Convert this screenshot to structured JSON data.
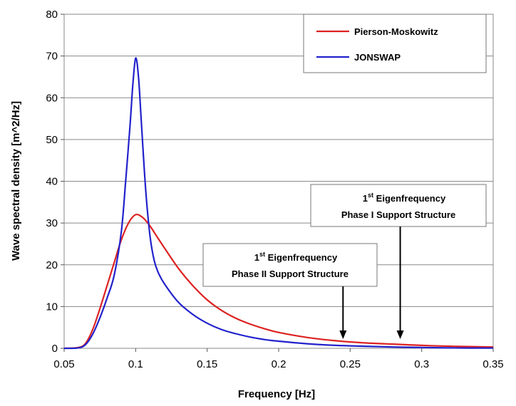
{
  "chart_data": {
    "type": "line",
    "xlabel": "Frequency [Hz]",
    "ylabel": "Wave spectral density [m^2/Hz]",
    "xlim": [
      0.05,
      0.35
    ],
    "ylim": [
      0,
      80
    ],
    "x_ticks": [
      "0.05",
      "0.1",
      "0.15",
      "0.2",
      "0.25",
      "0.3",
      "0.35"
    ],
    "y_ticks": [
      "0",
      "10",
      "20",
      "30",
      "40",
      "50",
      "60",
      "70",
      "80"
    ],
    "grid": "horizontal",
    "legend_position": "top-right",
    "series": [
      {
        "name": "Pierson-Moskowitz",
        "color": "#dd2222",
        "x": [
          0.05,
          0.06,
          0.065,
          0.07,
          0.075,
          0.08,
          0.085,
          0.09,
          0.095,
          0.1,
          0.105,
          0.11,
          0.115,
          0.12,
          0.13,
          0.14,
          0.15,
          0.16,
          0.17,
          0.18,
          0.19,
          0.2,
          0.22,
          0.24,
          0.26,
          0.28,
          0.3,
          0.32,
          0.35
        ],
        "y": [
          0,
          0.2,
          1.2,
          4.5,
          9.5,
          15,
          20.5,
          26,
          30,
          32,
          31.3,
          29.3,
          26.7,
          24.1,
          19.1,
          15,
          11.6,
          9.1,
          7.2,
          5.8,
          4.7,
          3.8,
          2.6,
          1.8,
          1.3,
          1,
          0.7,
          0.5,
          0.3
        ]
      },
      {
        "name": "JONSWAP",
        "color": "#2222cc",
        "x": [
          0.05,
          0.06,
          0.065,
          0.07,
          0.075,
          0.08,
          0.085,
          0.09,
          0.093,
          0.096,
          0.098,
          0.1,
          0.102,
          0.104,
          0.107,
          0.11,
          0.113,
          0.116,
          0.12,
          0.13,
          0.14,
          0.15,
          0.16,
          0.17,
          0.18,
          0.19,
          0.2,
          0.22,
          0.24,
          0.26,
          0.28,
          0.3,
          0.32,
          0.35
        ],
        "y": [
          0,
          0.1,
          0.9,
          3.4,
          7.3,
          12,
          17.5,
          28,
          40,
          53,
          63,
          69.5,
          65,
          54,
          38,
          27,
          21,
          18,
          15.5,
          11,
          8.1,
          6,
          4.5,
          3.5,
          2.7,
          2.1,
          1.7,
          1.1,
          0.7,
          0.5,
          0.3,
          0.2,
          0.1,
          0.05
        ]
      }
    ],
    "annotations": [
      {
        "sup_prefix": "1",
        "sup": "st",
        "title": " Eigenfrequency",
        "subtitle": "Phase I Support Structure",
        "arrow_x": 0.285
      },
      {
        "sup_prefix": "1",
        "sup": "st",
        "title": " Eigenfrequency",
        "subtitle": "Phase II Support Structure",
        "arrow_x": 0.245
      }
    ]
  }
}
